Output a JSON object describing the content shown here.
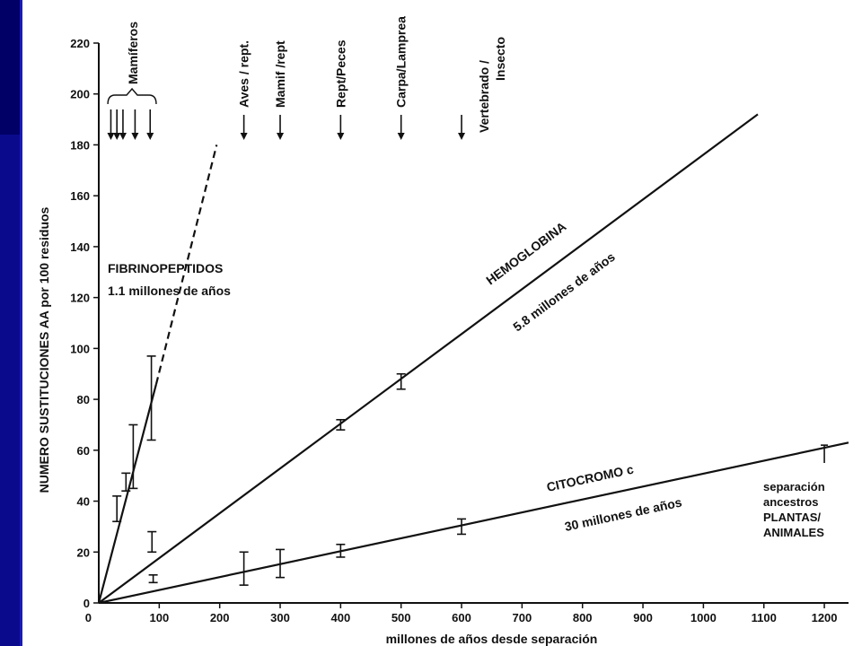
{
  "chart_data": {
    "type": "line",
    "xlabel": "millones de años  desde separación",
    "ylabel": "NUMERO SUSTITUCIONES AA por 100 residuos",
    "xlim": [
      0,
      1240
    ],
    "ylim": [
      0,
      220
    ],
    "xticks": [
      100,
      200,
      300,
      400,
      500,
      600,
      700,
      800,
      900,
      1000,
      1100,
      1200
    ],
    "yticks": [
      0,
      20,
      40,
      60,
      80,
      100,
      120,
      140,
      160,
      180,
      200,
      220
    ],
    "series": [
      {
        "name": "FIBRINOPEPTIDOS",
        "rate_label": "1.1 millones de años",
        "line": [
          [
            0,
            0
          ],
          [
            95,
            86
          ]
        ],
        "dashed_extension": [
          [
            95,
            86
          ],
          [
            195,
            180
          ]
        ],
        "points": [
          {
            "x": 30,
            "y": 37,
            "lo": 32,
            "hi": 42
          },
          {
            "x": 45,
            "y": 47,
            "lo": 44,
            "hi": 51
          },
          {
            "x": 57,
            "y": 57,
            "lo": 45,
            "hi": 70
          },
          {
            "x": 87,
            "y": 80,
            "lo": 64,
            "hi": 97
          }
        ]
      },
      {
        "name": "HEMOGLOBINA",
        "rate_label": "5.8 millones de años",
        "line": [
          [
            0,
            0
          ],
          [
            1090,
            192
          ]
        ],
        "points": [
          {
            "x": 88,
            "y": 24,
            "lo": 20,
            "hi": 28
          },
          {
            "x": 400,
            "y": 70,
            "lo": 68,
            "hi": 72
          },
          {
            "x": 500,
            "y": 87,
            "lo": 84,
            "hi": 90
          }
        ]
      },
      {
        "name": "CITOCROMO c",
        "rate_label": "30 millones de años",
        "line": [
          [
            0,
            0
          ],
          [
            1240,
            63
          ]
        ],
        "points": [
          {
            "x": 90,
            "y": 9,
            "lo": 8,
            "hi": 11
          },
          {
            "x": 240,
            "y": 13,
            "lo": 7,
            "hi": 20
          },
          {
            "x": 300,
            "y": 14,
            "lo": 10,
            "hi": 21
          },
          {
            "x": 400,
            "y": 20,
            "lo": 18,
            "hi": 23
          },
          {
            "x": 600,
            "y": 30,
            "lo": 27,
            "hi": 33
          }
        ]
      }
    ],
    "events": [
      {
        "label": "Aves / rept.",
        "x": 240
      },
      {
        "label": "Mamif /rept",
        "x": 300
      },
      {
        "label": "Rept/Peces",
        "x": 400
      },
      {
        "label": "Carpa/Lamprea",
        "x": 500
      },
      {
        "label": "Vertebrado / Insecto",
        "x": 600
      }
    ],
    "mammals": {
      "label": "Mamíferos",
      "arrows_x": [
        20,
        30,
        40,
        60,
        85
      ]
    },
    "plant_animal_note": "separación ancestros PLANTAS/ ANIMALES",
    "plant_animal_marker": {
      "x": 1200,
      "lo": 55,
      "hi": 62
    }
  }
}
